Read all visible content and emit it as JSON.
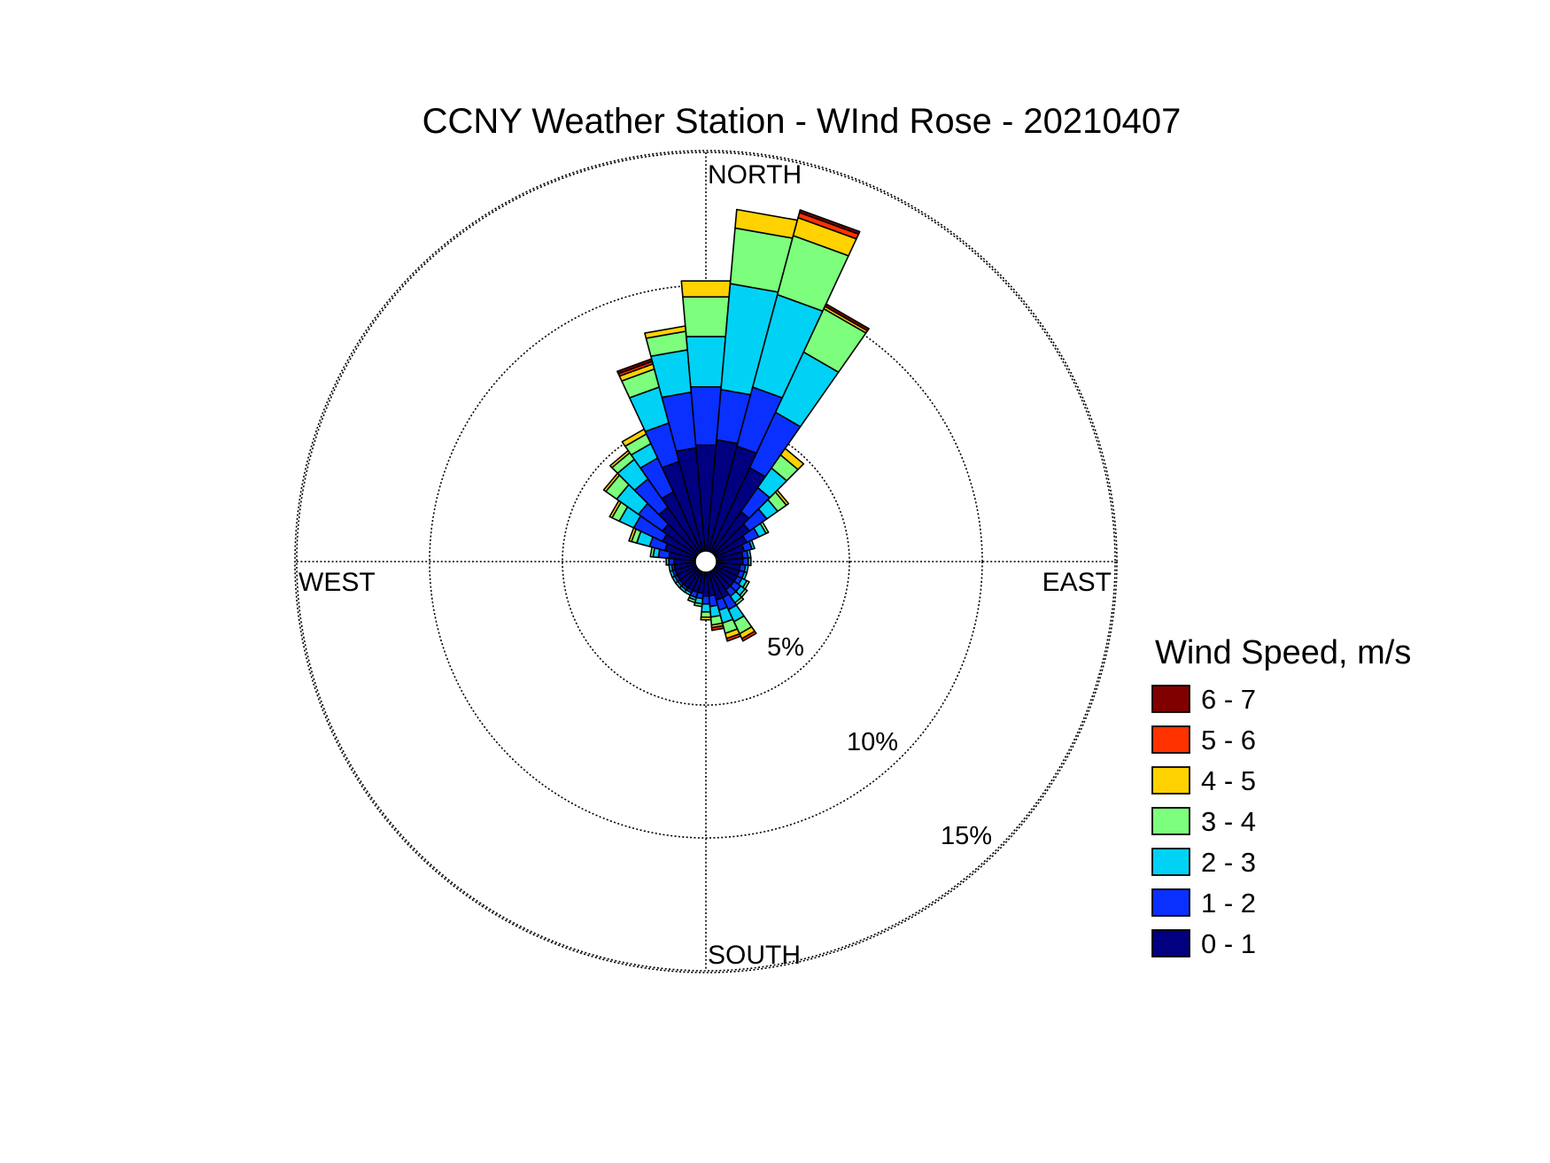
{
  "chart_data": {
    "type": "wind-rose",
    "title": "CCNY Weather Station - WInd Rose - 20210407",
    "direction_labels": {
      "north": "NORTH",
      "east": "EAST",
      "south": "SOUTH",
      "west": "WEST"
    },
    "rings": [
      {
        "value": 5,
        "label": "5%"
      },
      {
        "value": 10,
        "label": "10%"
      },
      {
        "value": 15,
        "label": "15%"
      }
    ],
    "r_max": 15,
    "grid": true,
    "legend": {
      "title": "Wind Speed, m/s",
      "placement": "right"
    },
    "speed_bins": [
      {
        "label": "0 - 1",
        "color": "#000080"
      },
      {
        "label": "1 - 2",
        "color": "#0a30ff"
      },
      {
        "label": "2 - 3",
        "color": "#00d2f5"
      },
      {
        "label": "3 - 4",
        "color": "#7dff7d"
      },
      {
        "label": "4 - 5",
        "color": "#ffd200"
      },
      {
        "label": "5 - 6",
        "color": "#ff3200"
      },
      {
        "label": "6 - 7",
        "color": "#800000"
      }
    ],
    "direction_unit": "degrees",
    "percent_unit": "%",
    "sectors": [
      {
        "direction": 0,
        "cumulative": [
          4.0,
          6.2,
          8.1,
          9.6,
          10.2,
          10.2,
          10.2
        ]
      },
      {
        "direction": 10,
        "cumulative": [
          4.2,
          6.1,
          10.1,
          12.2,
          12.9,
          12.9,
          12.9
        ]
      },
      {
        "direction": 20,
        "cumulative": [
          4.1,
          6.4,
          10.0,
          12.3,
          13.0,
          13.2,
          13.3
        ]
      },
      {
        "direction": 30,
        "cumulative": [
          3.5,
          5.8,
          8.3,
          10.1,
          10.2,
          10.2,
          10.3
        ]
      },
      {
        "direction": 40,
        "cumulative": [
          1.9,
          3.0,
          3.9,
          4.5,
          4.8,
          4.8,
          4.8
        ]
      },
      {
        "direction": 50,
        "cumulative": [
          1.6,
          2.4,
          2.9,
          3.3,
          3.4,
          3.4,
          3.4
        ]
      },
      {
        "direction": 60,
        "cumulative": [
          1.3,
          1.8,
          2.1,
          2.2,
          2.2,
          2.2,
          2.2
        ]
      },
      {
        "direction": 70,
        "cumulative": [
          1.1,
          1.4,
          1.5,
          1.5,
          1.5,
          1.5,
          1.5
        ]
      },
      {
        "direction": 80,
        "cumulative": [
          1.0,
          1.2,
          1.3,
          1.3,
          1.3,
          1.3,
          1.3
        ]
      },
      {
        "direction": 90,
        "cumulative": [
          1.0,
          1.2,
          1.3,
          1.3,
          1.3,
          1.3,
          1.3
        ]
      },
      {
        "direction": 100,
        "cumulative": [
          0.9,
          1.1,
          1.2,
          1.2,
          1.2,
          1.2,
          1.2
        ]
      },
      {
        "direction": 110,
        "cumulative": [
          0.9,
          1.1,
          1.2,
          1.2,
          1.2,
          1.2,
          1.2
        ]
      },
      {
        "direction": 120,
        "cumulative": [
          0.9,
          1.1,
          1.3,
          1.4,
          1.4,
          1.4,
          1.4
        ]
      },
      {
        "direction": 130,
        "cumulative": [
          0.9,
          1.2,
          1.4,
          1.5,
          1.5,
          1.5,
          1.5
        ]
      },
      {
        "direction": 140,
        "cumulative": [
          0.9,
          1.2,
          1.5,
          1.6,
          1.6,
          1.6,
          1.6
        ]
      },
      {
        "direction": 150,
        "cumulative": [
          1.1,
          1.6,
          2.1,
          2.6,
          2.8,
          2.9,
          2.9
        ]
      },
      {
        "direction": 160,
        "cumulative": [
          1.1,
          1.5,
          2.0,
          2.4,
          2.6,
          2.7,
          2.7
        ]
      },
      {
        "direction": 170,
        "cumulative": [
          0.9,
          1.3,
          1.7,
          2.0,
          2.1,
          2.2,
          2.2
        ]
      },
      {
        "direction": 180,
        "cumulative": [
          0.9,
          1.2,
          1.5,
          1.7,
          1.8,
          1.8,
          1.8
        ]
      },
      {
        "direction": 190,
        "cumulative": [
          0.8,
          1.0,
          1.2,
          1.3,
          1.3,
          1.3,
          1.3
        ]
      },
      {
        "direction": 200,
        "cumulative": [
          0.8,
          1.0,
          1.1,
          1.2,
          1.2,
          1.2,
          1.2
        ]
      },
      {
        "direction": 210,
        "cumulative": [
          0.8,
          0.9,
          1.0,
          1.0,
          1.0,
          1.0,
          1.0
        ]
      },
      {
        "direction": 220,
        "cumulative": [
          0.8,
          0.9,
          1.0,
          1.0,
          1.0,
          1.0,
          1.0
        ]
      },
      {
        "direction": 230,
        "cumulative": [
          0.8,
          0.9,
          1.0,
          1.0,
          1.0,
          1.0,
          1.0
        ]
      },
      {
        "direction": 240,
        "cumulative": [
          0.8,
          0.9,
          1.0,
          1.0,
          1.0,
          1.0,
          1.0
        ]
      },
      {
        "direction": 250,
        "cumulative": [
          0.8,
          0.9,
          1.0,
          1.0,
          1.0,
          1.0,
          1.0
        ]
      },
      {
        "direction": 260,
        "cumulative": [
          0.8,
          0.9,
          1.0,
          1.0,
          1.0,
          1.0,
          1.0
        ]
      },
      {
        "direction": 270,
        "cumulative": [
          0.8,
          1.0,
          1.1,
          1.1,
          1.1,
          1.1,
          1.1
        ]
      },
      {
        "direction": 280,
        "cumulative": [
          1.0,
          1.4,
          1.6,
          1.7,
          1.7,
          1.7,
          1.7
        ]
      },
      {
        "direction": 290,
        "cumulative": [
          1.2,
          1.8,
          2.3,
          2.5,
          2.6,
          2.6,
          2.6
        ]
      },
      {
        "direction": 300,
        "cumulative": [
          1.4,
          2.6,
          3.2,
          3.5,
          3.6,
          3.6,
          3.6
        ]
      },
      {
        "direction": 310,
        "cumulative": [
          1.6,
          2.7,
          3.7,
          4.2,
          4.3,
          4.3,
          4.3
        ]
      },
      {
        "direction": 320,
        "cumulative": [
          2.1,
          3.4,
          4.3,
          4.6,
          4.7,
          4.7,
          4.7
        ]
      },
      {
        "direction": 330,
        "cumulative": [
          2.5,
          3.9,
          4.5,
          4.9,
          5.1,
          5.1,
          5.1
        ]
      },
      {
        "direction": 340,
        "cumulative": [
          3.5,
          5.0,
          6.4,
          7.1,
          7.3,
          7.4,
          7.5
        ]
      },
      {
        "direction": 350,
        "cumulative": [
          3.9,
          6.0,
          7.6,
          8.3,
          8.5,
          8.5,
          8.5
        ]
      }
    ]
  }
}
